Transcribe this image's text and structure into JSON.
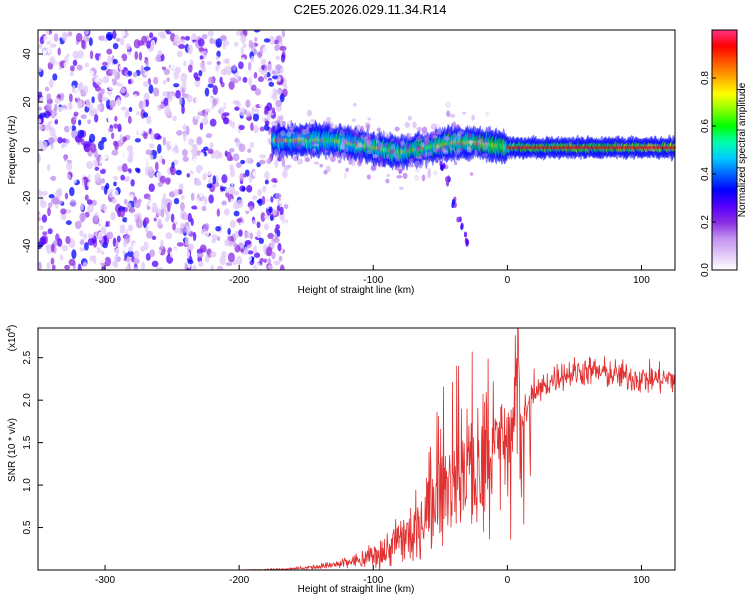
{
  "figure": {
    "title": "C2E5.2026.029.11.34.R14"
  },
  "chart_data": [
    {
      "type": "heatmap",
      "xlabel": "Height of straight line (km)",
      "ylabel": "Frequency (Hz)",
      "xlim": [
        -350,
        125
      ],
      "ylim": [
        -50,
        50
      ],
      "xticks": [
        -300,
        -200,
        -100,
        0,
        100
      ],
      "yticks": [
        -40,
        -20,
        0,
        20,
        40
      ],
      "colorbar": {
        "label": "Normalized spectral amplitude",
        "range": [
          0,
          1
        ],
        "ticks": [
          0.0,
          0.2,
          0.4,
          0.6,
          0.8
        ],
        "tick_labels": [
          "0.0",
          "0.2",
          "0.4",
          "0.6",
          "0.8"
        ],
        "colormap": [
          "#ffffff",
          "#e0c8f8",
          "#c090f0",
          "#8a2be2",
          "#5500ff",
          "#0000ff",
          "#0066ff",
          "#00ccff",
          "#00ffaa",
          "#00ff00",
          "#88ff00",
          "#ffff00",
          "#ffaa00",
          "#ff5500",
          "#ff0000",
          "#ff3388"
        ]
      },
      "regions": [
        {
          "kind": "noise",
          "x_range": [
            -350,
            -170
          ],
          "y_range": [
            -50,
            50
          ],
          "amplitude_range": [
            0.02,
            0.35
          ]
        },
        {
          "kind": "ridge",
          "x_range": [
            -175,
            125
          ],
          "center_hz": [
            [
              -175,
              4
            ],
            [
              -150,
              4
            ],
            [
              -130,
              4
            ],
            [
              -100,
              1
            ],
            [
              -80,
              -1
            ],
            [
              -60,
              1
            ],
            [
              -40,
              3
            ],
            [
              -25,
              3
            ],
            [
              -10,
              2
            ],
            [
              0,
              1
            ],
            [
              125,
              1
            ]
          ],
          "amplitude_range": [
            0.2,
            0.95
          ]
        },
        {
          "kind": "dispersion_tail",
          "points": [
            [
              -50,
              -5
            ],
            [
              -45,
              -12
            ],
            [
              -40,
              -22
            ],
            [
              -35,
              -30
            ],
            [
              -30,
              -37
            ]
          ],
          "amplitude_range": [
            0.2,
            0.35
          ]
        }
      ]
    },
    {
      "type": "line",
      "xlabel": "Height of straight line (km)",
      "ylabel": "SNR (10 * v/v)",
      "y_multiplier": "(x10",
      "y_multiplier_exp": "4",
      "y_multiplier_close": ")",
      "xlim": [
        -350,
        125
      ],
      "ylim": [
        0,
        2.85
      ],
      "xticks": [
        -300,
        -200,
        -100,
        0,
        100
      ],
      "yticks": [
        0.5,
        1.0,
        1.5,
        2.0,
        2.5
      ],
      "ytick_labels": [
        "0.5",
        "1.0",
        "1.5",
        "2.0",
        "2.5"
      ],
      "color": "#e03030",
      "series": [
        {
          "x": [
            -350,
            -300,
            -250,
            -200,
            -170,
            -150,
            -130,
            -110,
            -100,
            -90,
            -80,
            -70,
            -60,
            -50,
            -40,
            -30,
            -20,
            -10,
            0,
            5,
            8,
            10,
            20,
            30,
            40,
            60,
            80,
            100,
            125
          ],
          "y": [
            0.0,
            0.0,
            0.0,
            0.0,
            0.01,
            0.03,
            0.06,
            0.12,
            0.18,
            0.25,
            0.35,
            0.5,
            0.7,
            0.9,
            1.1,
            1.3,
            1.1,
            1.5,
            1.6,
            1.7,
            2.8,
            1.8,
            2.05,
            2.2,
            2.3,
            2.35,
            2.3,
            2.25,
            2.25
          ],
          "noise_amplitude": [
            0.0,
            0.0,
            0.0,
            0.0,
            0.01,
            0.02,
            0.05,
            0.1,
            0.2,
            0.25,
            0.3,
            0.4,
            0.5,
            0.6,
            0.7,
            0.8,
            0.8,
            0.6,
            0.4,
            0.4,
            0.3,
            0.3,
            0.2,
            0.2,
            0.2,
            0.2,
            0.2,
            0.2,
            0.2
          ]
        }
      ]
    }
  ]
}
